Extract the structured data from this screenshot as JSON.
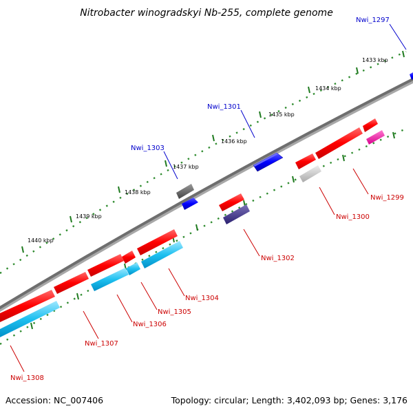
{
  "title": "Nitrobacter winogradskyi Nb-255, complete genome",
  "footer": {
    "accession": "Accession: NC_007406",
    "summary": "Topology: circular; Length: 3,402,093 bp; Genes: 3,176"
  },
  "ticks": [
    "1433 kbp",
    "1434 kbp",
    "1435 kbp",
    "1436 kbp",
    "1437 kbp",
    "1438 kbp",
    "1439 kbp",
    "1440 kbp"
  ],
  "genes": [
    {
      "label": "Nwi_1297",
      "color": "#0000cc"
    },
    {
      "label": "Nwi_1301",
      "color": "#0000cc"
    },
    {
      "label": "Nwi_1303",
      "color": "#0000cc"
    },
    {
      "label": "Nwi_1299",
      "color": "#cc0000"
    },
    {
      "label": "Nwi_1300",
      "color": "#cc0000"
    },
    {
      "label": "Nwi_1302",
      "color": "#cc0000"
    },
    {
      "label": "Nwi_1304",
      "color": "#cc0000"
    },
    {
      "label": "Nwi_1305",
      "color": "#cc0000"
    },
    {
      "label": "Nwi_1306",
      "color": "#cc0000"
    },
    {
      "label": "Nwi_1307",
      "color": "#cc0000"
    },
    {
      "label": "Nwi_1308",
      "color": "#cc0000"
    }
  ]
}
